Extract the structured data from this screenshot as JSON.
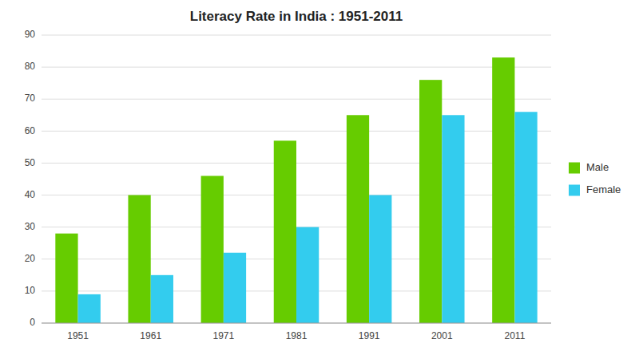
{
  "chart_data": {
    "type": "bar",
    "title": "Literacy Rate in India : 1951-2011",
    "categories": [
      "1951",
      "1961",
      "1971",
      "1981",
      "1991",
      "2001",
      "2011"
    ],
    "series": [
      {
        "name": "Male",
        "color": "#66cc00",
        "values": [
          28,
          40,
          46,
          57,
          65,
          76,
          83
        ]
      },
      {
        "name": "Female",
        "color": "#33ccee",
        "values": [
          9,
          15,
          22,
          30,
          40,
          65,
          66
        ]
      }
    ],
    "ylim": [
      0,
      90
    ],
    "yticks": [
      0,
      10,
      20,
      30,
      40,
      50,
      60,
      70,
      80,
      90
    ],
    "grid": true,
    "legend": "right"
  }
}
